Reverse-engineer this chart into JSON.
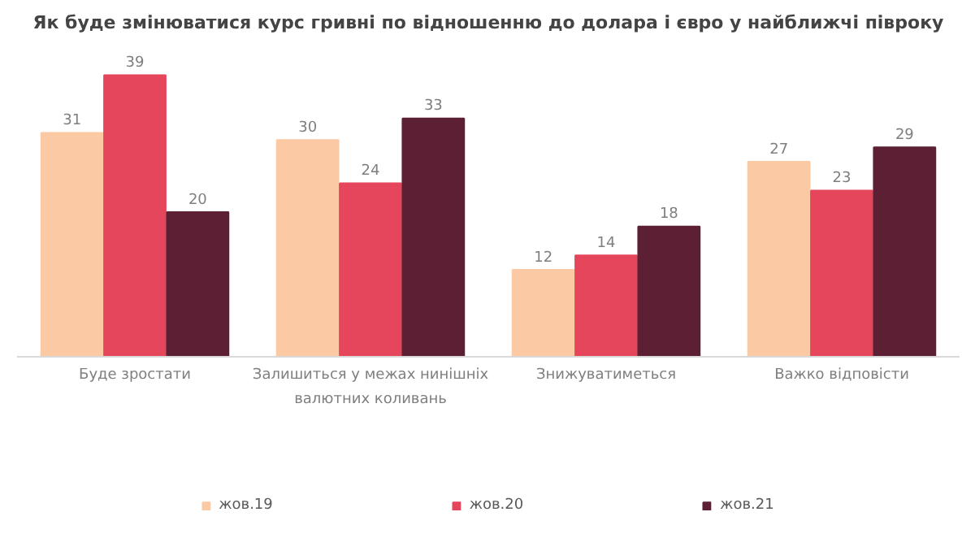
{
  "chart_data": {
    "type": "bar",
    "title": "Як буде змінюватися курс гривні по відношенню до долара і євро у найближчі півроку",
    "categories": [
      "Буде зростати",
      "Залишиться у межах нинішніх валютних коливань",
      "Знижуватиметься",
      "Важко відповісти"
    ],
    "series": [
      {
        "name": "жов.19",
        "color": "#fbc9a4",
        "values": [
          31,
          30,
          12,
          27
        ]
      },
      {
        "name": "жов.20",
        "color": "#e5465c",
        "values": [
          39,
          24,
          14,
          23
        ]
      },
      {
        "name": "жов.21",
        "color": "#5c1f33",
        "values": [
          20,
          33,
          18,
          29
        ]
      }
    ],
    "data_labels": true,
    "legend": "bottom"
  }
}
